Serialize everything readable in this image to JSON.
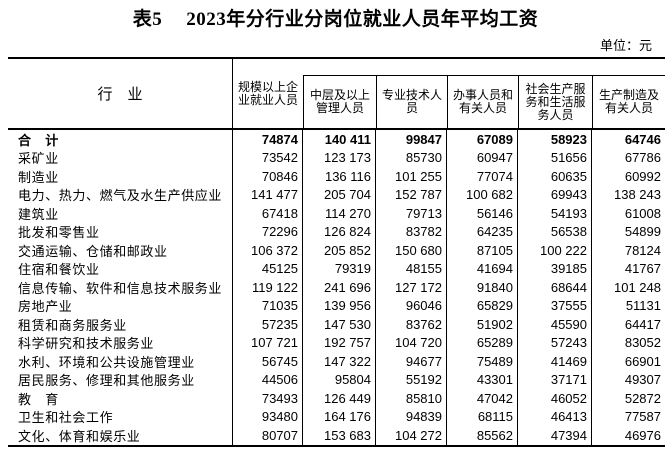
{
  "title": {
    "prefix": "表5",
    "text": "2023年分行业分岗位就业人员年平均工资"
  },
  "unit_label": "单位：元",
  "table": {
    "industry_header": "行　业",
    "columns": [
      "规模以上企\n业就业人员",
      "中层及以上\n管理人员",
      "专业技术人\n员",
      "办事人员和\n有关人员",
      "社会生产服\n务和生活服\n务人员",
      "生产制造及\n有关人员"
    ],
    "rows": [
      {
        "industry": "合　计",
        "emphasis": true,
        "values": [
          "74874",
          "140 411",
          "99847",
          "67089",
          "58923",
          "64746"
        ]
      },
      {
        "industry": "采矿业",
        "emphasis": false,
        "values": [
          "73542",
          "123 173",
          "85730",
          "60947",
          "51656",
          "67786"
        ]
      },
      {
        "industry": "制造业",
        "emphasis": false,
        "values": [
          "70846",
          "136 116",
          "101 255",
          "77074",
          "60635",
          "60992"
        ]
      },
      {
        "industry": "电力、热力、燃气及水生产供应业",
        "emphasis": false,
        "values": [
          "141 477",
          "205 704",
          "152 787",
          "100 682",
          "69943",
          "138 243"
        ]
      },
      {
        "industry": "建筑业",
        "emphasis": false,
        "values": [
          "67418",
          "114 270",
          "79713",
          "56146",
          "54193",
          "61008"
        ]
      },
      {
        "industry": "批发和零售业",
        "emphasis": false,
        "values": [
          "72296",
          "126 824",
          "83782",
          "64235",
          "56538",
          "54899"
        ]
      },
      {
        "industry": "交通运输、仓储和邮政业",
        "emphasis": false,
        "values": [
          "106 372",
          "205 852",
          "150 680",
          "87105",
          "100 222",
          "78124"
        ]
      },
      {
        "industry": "住宿和餐饮业",
        "emphasis": false,
        "values": [
          "45125",
          "79319",
          "48155",
          "41694",
          "39185",
          "41767"
        ]
      },
      {
        "industry": "信息传输、软件和信息技术服务业",
        "emphasis": false,
        "values": [
          "119 122",
          "241 696",
          "127 172",
          "91840",
          "68644",
          "101 248"
        ]
      },
      {
        "industry": "房地产业",
        "emphasis": false,
        "values": [
          "71035",
          "139 956",
          "96046",
          "65829",
          "37555",
          "51131"
        ]
      },
      {
        "industry": "租赁和商务服务业",
        "emphasis": false,
        "values": [
          "57235",
          "147 530",
          "83762",
          "51902",
          "45590",
          "64417"
        ]
      },
      {
        "industry": "科学研究和技术服务业",
        "emphasis": false,
        "values": [
          "107 721",
          "192 757",
          "104 720",
          "65289",
          "57243",
          "83052"
        ]
      },
      {
        "industry": "水利、环境和公共设施管理业",
        "emphasis": false,
        "values": [
          "56745",
          "147 322",
          "94677",
          "75489",
          "41469",
          "66901"
        ]
      },
      {
        "industry": "居民服务、修理和其他服务业",
        "emphasis": false,
        "values": [
          "44506",
          "95804",
          "55192",
          "43301",
          "37171",
          "49307"
        ]
      },
      {
        "industry": "教　育",
        "emphasis": false,
        "values": [
          "73493",
          "126 449",
          "85810",
          "47042",
          "46052",
          "52872"
        ]
      },
      {
        "industry": "卫生和社会工作",
        "emphasis": false,
        "values": [
          "93480",
          "164 176",
          "94839",
          "68115",
          "46413",
          "77587"
        ]
      },
      {
        "industry": "文化、体育和娱乐业",
        "emphasis": false,
        "values": [
          "80707",
          "153 683",
          "104 272",
          "85562",
          "47394",
          "46976"
        ]
      }
    ]
  }
}
